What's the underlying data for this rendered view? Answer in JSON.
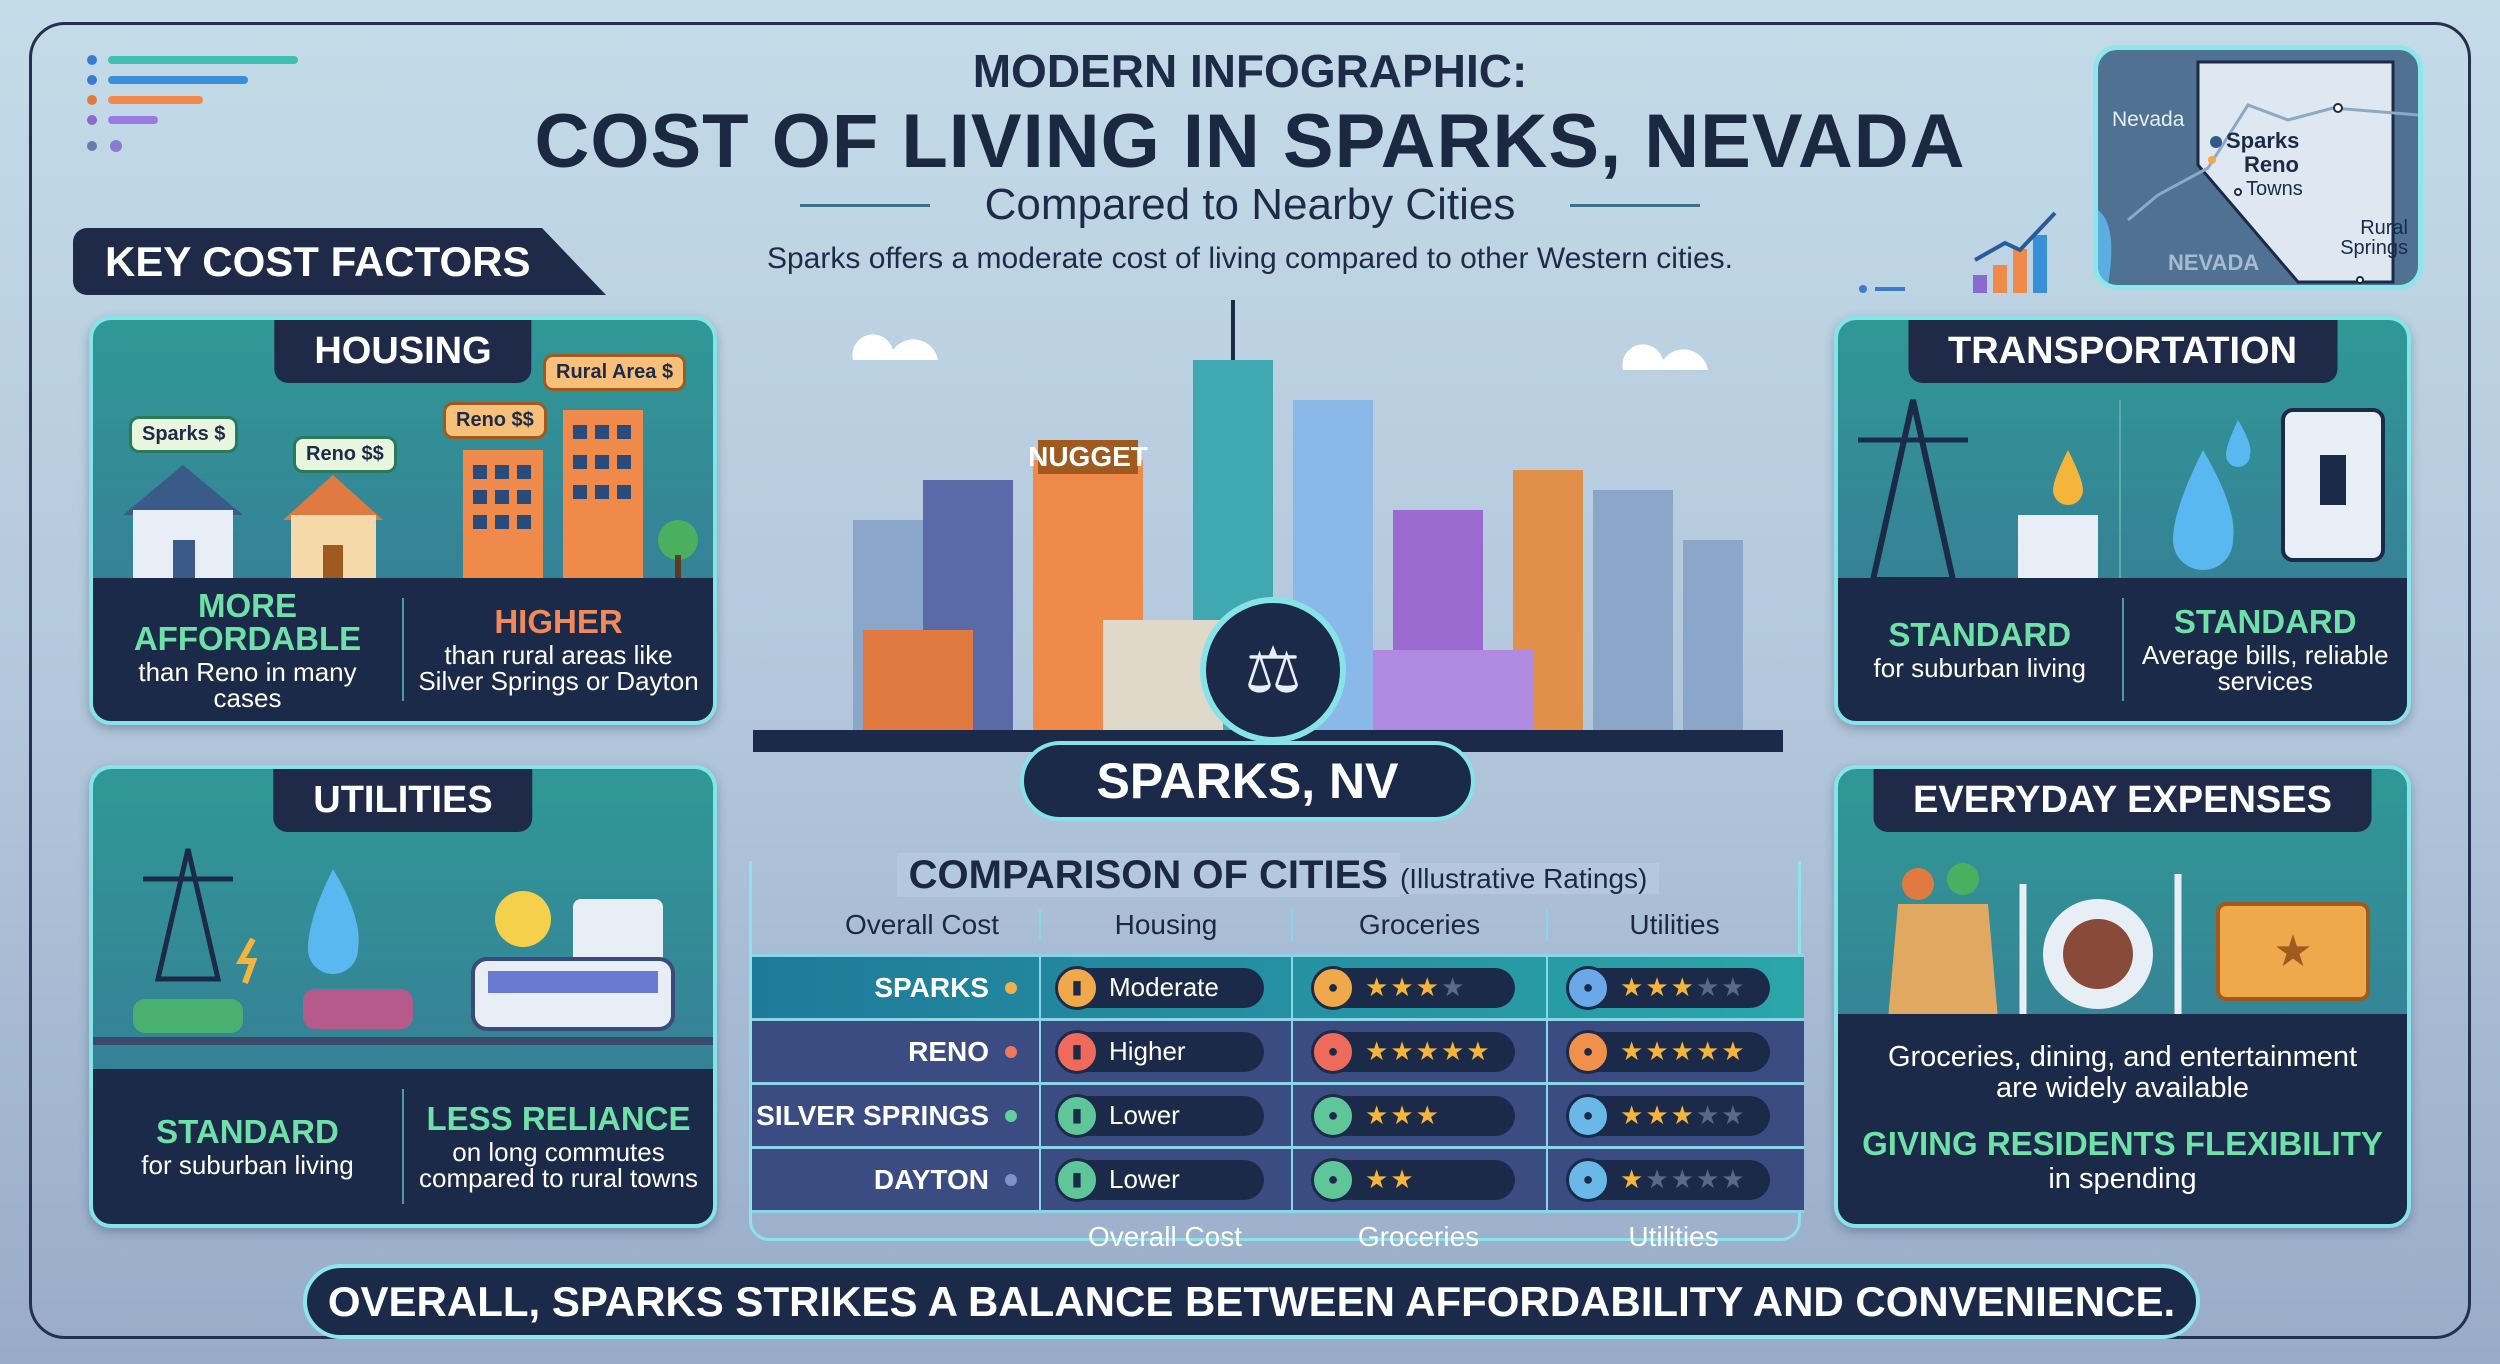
{
  "header": {
    "kicker": "MODERN INFOGRAPHIC:",
    "title": "COST OF LIVING IN SPARKS, NEVADA",
    "subtitle": "Compared to Nearby Cities",
    "tagline": "Sparks offers a moderate cost of living compared to other Western cities."
  },
  "key_factors_label": "KEY COST FACTORS",
  "map": {
    "state_label_left": "Nevada",
    "state_label_bottom": "NEVADA",
    "places": [
      "Sparks",
      "Reno",
      "Towns",
      "Rural Springs"
    ]
  },
  "housing": {
    "title": "HOUSING",
    "tags": [
      "Sparks $",
      "Reno $$",
      "Reno $$",
      "Rural Area $"
    ],
    "left_head": "MORE AFFORDABLE",
    "left_text": "than Reno in many cases",
    "right_head": "HIGHER",
    "right_text": "than rural areas like Silver Springs or Dayton"
  },
  "utilities": {
    "title": "UTILITIES",
    "left_head": "STANDARD",
    "left_text": "for suburban living",
    "right_head": "LESS RELIANCE",
    "right_text": "on long commutes compared to rural towns"
  },
  "transportation": {
    "title": "TRANSPORTATION",
    "left_head": "STANDARD",
    "left_text": "for suburban living",
    "right_head": "STANDARD",
    "right_text": "Average bills, reliable services"
  },
  "everyday": {
    "title": "EVERYDAY EXPENSES",
    "text": "Groceries, dining, and entertainment are widely available",
    "head": "GIVING RESIDENTS FLEXIBILITY",
    "sub": "in spending"
  },
  "city": {
    "sign": "NUGGET",
    "label": "SPARKS, NV"
  },
  "comparison": {
    "title": "COMPARISON OF CITIES",
    "note": "(Illustrative Ratings)",
    "headers": [
      "Overall Cost",
      "Housing",
      "Groceries",
      "Utilities"
    ],
    "footers": [
      "Overall Cost",
      "Groceries",
      "Utilities"
    ],
    "rows": [
      {
        "city": "SPARKS",
        "dot": "#f0b04a",
        "housing": "Moderate",
        "housing_color": "#f0a94a",
        "groceries_stars": 3,
        "groceries_max": 4,
        "groceries_color": "#f0a94a",
        "utilities_stars": 3,
        "utilities_max": 5,
        "utilities_color": "#6aa8e8"
      },
      {
        "city": "RENO",
        "dot": "#ee7760",
        "housing": "Higher",
        "housing_color": "#ee6a5a",
        "groceries_stars": 5,
        "groceries_max": 5,
        "groceries_color": "#ee6a5a",
        "utilities_stars": 5,
        "utilities_max": 5,
        "utilities_color": "#f0904a"
      },
      {
        "city": "SILVER SPRINGS",
        "dot": "#5fd39a",
        "housing": "Lower",
        "housing_color": "#5fc69a",
        "groceries_stars": 3,
        "groceries_max": 3,
        "groceries_color": "#5fc69a",
        "utilities_stars": 3,
        "utilities_max": 5,
        "utilities_color": "#6ab8e8"
      },
      {
        "city": "DAYTON",
        "dot": "#7f8fd0",
        "housing": "Lower",
        "housing_color": "#5fc69a",
        "groceries_stars": 2,
        "groceries_max": 2,
        "groceries_color": "#5fc69a",
        "utilities_stars": 1,
        "utilities_max": 5,
        "utilities_color": "#6ab8e8"
      }
    ]
  },
  "conclusion": "OVERALL, SPARKS STRIKES A BALANCE BETWEEN AFFORDABILITY AND CONVENIENCE.",
  "colors": {
    "navy": "#1c2a4a",
    "accent_green": "#6fe0a8",
    "accent_orange": "#f2895a",
    "border_cyan": "#86e4e8",
    "star": "#f5b53a",
    "star_empty": "#5a6a86"
  }
}
